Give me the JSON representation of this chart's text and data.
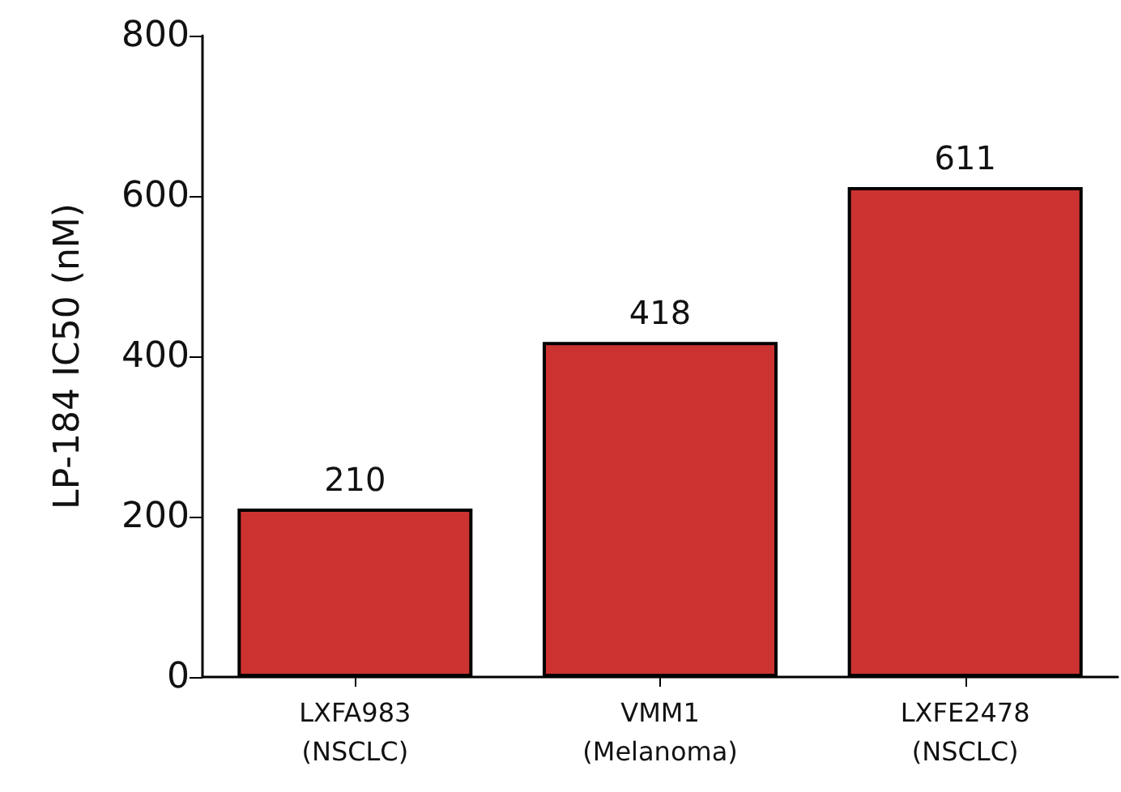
{
  "chart_data": {
    "type": "bar",
    "ylabel": "LP-184 IC50 (nM)",
    "categories": [
      "LXFA983\n(NSCLC)",
      "VMM1\n(Melanoma)",
      "LXFE2478\n(NSCLC)"
    ],
    "values": [
      210,
      418,
      611
    ],
    "color": "#cc3330",
    "ylim": [
      0,
      800
    ],
    "yticks": [
      0,
      200,
      400,
      600,
      800
    ],
    "data_labels": true
  }
}
